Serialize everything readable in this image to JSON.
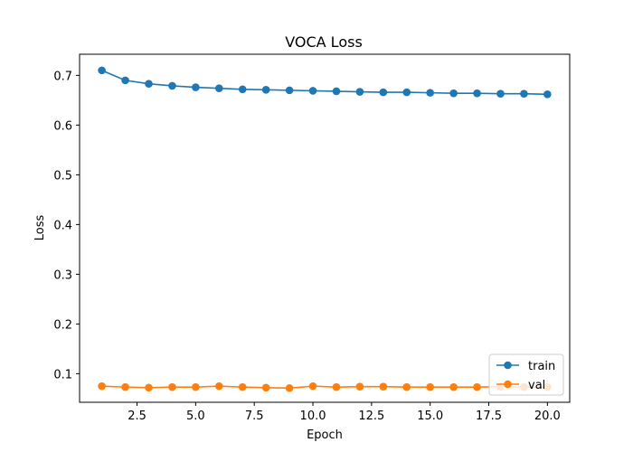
{
  "chart_data": {
    "type": "line",
    "title": "VOCA Loss",
    "xlabel": "Epoch",
    "ylabel": "Loss",
    "xlim": [
      0.05,
      20.95
    ],
    "ylim": [
      0.0425,
      0.7425
    ],
    "xticks": [
      2.5,
      5.0,
      7.5,
      10.0,
      12.5,
      15.0,
      17.5,
      20.0
    ],
    "xtick_labels": [
      "2.5",
      "5.0",
      "7.5",
      "10.0",
      "12.5",
      "15.0",
      "17.5",
      "20.0"
    ],
    "yticks": [
      0.1,
      0.2,
      0.3,
      0.4,
      0.5,
      0.6,
      0.7
    ],
    "ytick_labels": [
      "0.1",
      "0.2",
      "0.3",
      "0.4",
      "0.5",
      "0.6",
      "0.7"
    ],
    "grid": false,
    "legend_position": "lower-right",
    "x": [
      1,
      2,
      3,
      4,
      5,
      6,
      7,
      8,
      9,
      10,
      11,
      12,
      13,
      14,
      15,
      16,
      17,
      18,
      19,
      20
    ],
    "series": [
      {
        "name": "train",
        "color": "#1f77b4",
        "marker": "circle",
        "values": [
          0.71,
          0.69,
          0.683,
          0.679,
          0.676,
          0.674,
          0.672,
          0.671,
          0.67,
          0.669,
          0.668,
          0.667,
          0.666,
          0.666,
          0.665,
          0.664,
          0.664,
          0.663,
          0.663,
          0.662
        ]
      },
      {
        "name": "val",
        "color": "#ff7f0e",
        "marker": "circle",
        "values": [
          0.075,
          0.073,
          0.072,
          0.073,
          0.073,
          0.075,
          0.073,
          0.072,
          0.071,
          0.075,
          0.073,
          0.074,
          0.074,
          0.073,
          0.073,
          0.073,
          0.073,
          0.074,
          0.073,
          0.073
        ]
      }
    ]
  }
}
